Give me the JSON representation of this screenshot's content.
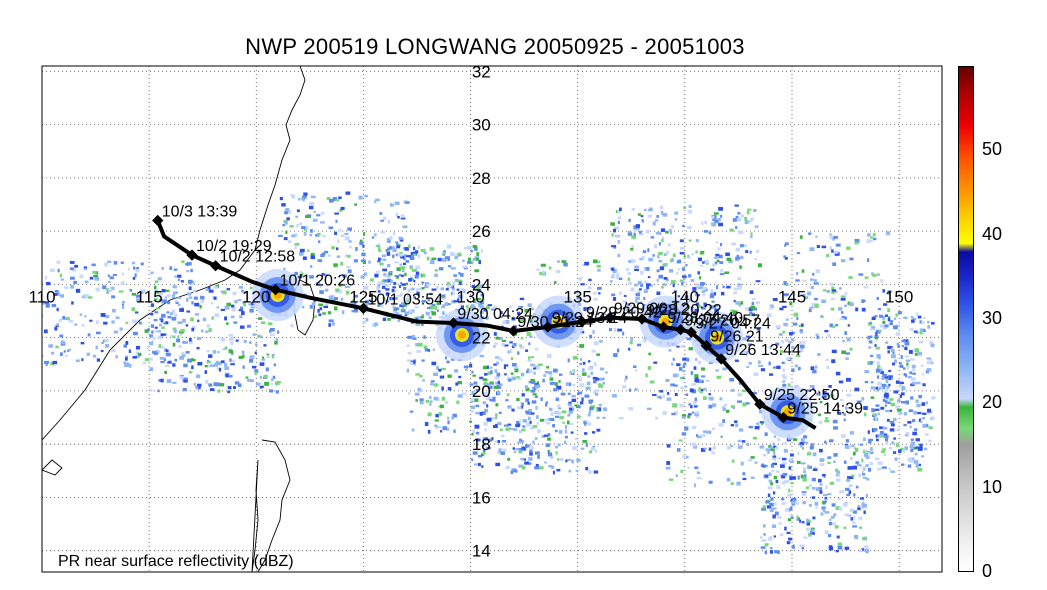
{
  "title": "NWP 200519 LONGWANG 20050925 - 20051003",
  "footnote": "PR near surface reflectivity (dBZ)",
  "lon_ticks": [
    "110",
    "115",
    "120",
    "125",
    "130",
    "135",
    "140",
    "145",
    "150"
  ],
  "lat_ticks": [
    "32",
    "30",
    "28",
    "26",
    "24",
    "22",
    "20",
    "18",
    "16",
    "14"
  ],
  "lon_range": [
    110,
    152
  ],
  "lat_range": [
    13.2,
    32.2
  ],
  "track": [
    {
      "lon": 146.1,
      "lat": 18.6
    },
    {
      "lon": 145.5,
      "lat": 18.9
    },
    {
      "lon": 144.6,
      "lat": 19.0,
      "label": "9/25 14:39"
    },
    {
      "lon": 143.5,
      "lat": 19.5,
      "label": "9/25 22:50"
    },
    {
      "lon": 142.6,
      "lat": 20.4
    },
    {
      "lon": 141.7,
      "lat": 21.2,
      "label": "9/26 13:44"
    },
    {
      "lon": 141.0,
      "lat": 21.7,
      "label": "9/26 21"
    },
    {
      "lon": 140.3,
      "lat": 22.2,
      "label": "9/27 04:24"
    },
    {
      "lon": 139.8,
      "lat": 22.3,
      "label": "9/27 20:57"
    },
    {
      "lon": 139.0,
      "lat": 22.4,
      "label": "9/28 04:40"
    },
    {
      "lon": 138.0,
      "lat": 22.7,
      "label": "9/28 20:22"
    },
    {
      "lon": 136.5,
      "lat": 22.75,
      "label": "9/29 06:12"
    },
    {
      "lon": 135.2,
      "lat": 22.6,
      "label": "9/29 20:42"
    },
    {
      "lon": 133.6,
      "lat": 22.4,
      "label": "9/29 13:14"
    },
    {
      "lon": 132.0,
      "lat": 22.25,
      "label": "9/30 21:24"
    },
    {
      "lon": 130.8,
      "lat": 22.45
    },
    {
      "lon": 129.2,
      "lat": 22.55,
      "label": "9/30 04:24"
    },
    {
      "lon": 127.5,
      "lat": 22.6
    },
    {
      "lon": 125.0,
      "lat": 23.1,
      "label": "10/1 03:54"
    },
    {
      "lon": 122.5,
      "lat": 23.5
    },
    {
      "lon": 120.9,
      "lat": 23.8,
      "label": "10/1 20:26"
    },
    {
      "lon": 119.8,
      "lat": 24.1
    },
    {
      "lon": 118.1,
      "lat": 24.7,
      "label": "10/2 12:58"
    },
    {
      "lon": 117.0,
      "lat": 25.1,
      "label": "10/2 19:29"
    },
    {
      "lon": 115.7,
      "lat": 25.8
    },
    {
      "lon": 115.4,
      "lat": 26.4,
      "label": "10/3 13:39"
    }
  ],
  "storm_centers": [
    {
      "lon": 121.0,
      "lat": 23.6
    },
    {
      "lon": 129.6,
      "lat": 22.1
    },
    {
      "lon": 134.1,
      "lat": 22.6
    },
    {
      "lon": 139.1,
      "lat": 22.6
    },
    {
      "lon": 141.5,
      "lat": 22.0
    },
    {
      "lon": 144.8,
      "lat": 19.2
    }
  ],
  "colorbar": {
    "ticks": [
      "50",
      "40",
      "30",
      "20",
      "10",
      "0"
    ],
    "range": [
      0,
      60
    ],
    "stops": [
      {
        "v": 0,
        "c": "#ffffff"
      },
      {
        "v": 3,
        "c": "#f2f2f2"
      },
      {
        "v": 6,
        "c": "#e0e0e0"
      },
      {
        "v": 9,
        "c": "#cfcfcf"
      },
      {
        "v": 12,
        "c": "#b8b8b8"
      },
      {
        "v": 15,
        "c": "#9e9e9e"
      },
      {
        "v": 17,
        "c": "#78d878"
      },
      {
        "v": 19.5,
        "c": "#3cb43c"
      },
      {
        "v": 20.5,
        "c": "#c8d8ff"
      },
      {
        "v": 24,
        "c": "#8fb6f5"
      },
      {
        "v": 28,
        "c": "#5e8cf0"
      },
      {
        "v": 32,
        "c": "#2e50e6"
      },
      {
        "v": 35,
        "c": "#1c26cc"
      },
      {
        "v": 38,
        "c": "#0a0aa0"
      },
      {
        "v": 39,
        "c": "#ffff00"
      },
      {
        "v": 42,
        "c": "#ffd000"
      },
      {
        "v": 45,
        "c": "#ff9900"
      },
      {
        "v": 49,
        "c": "#ff5500"
      },
      {
        "v": 53,
        "c": "#ee0000"
      },
      {
        "v": 57,
        "c": "#aa0000"
      },
      {
        "v": 60,
        "c": "#660000"
      }
    ]
  }
}
